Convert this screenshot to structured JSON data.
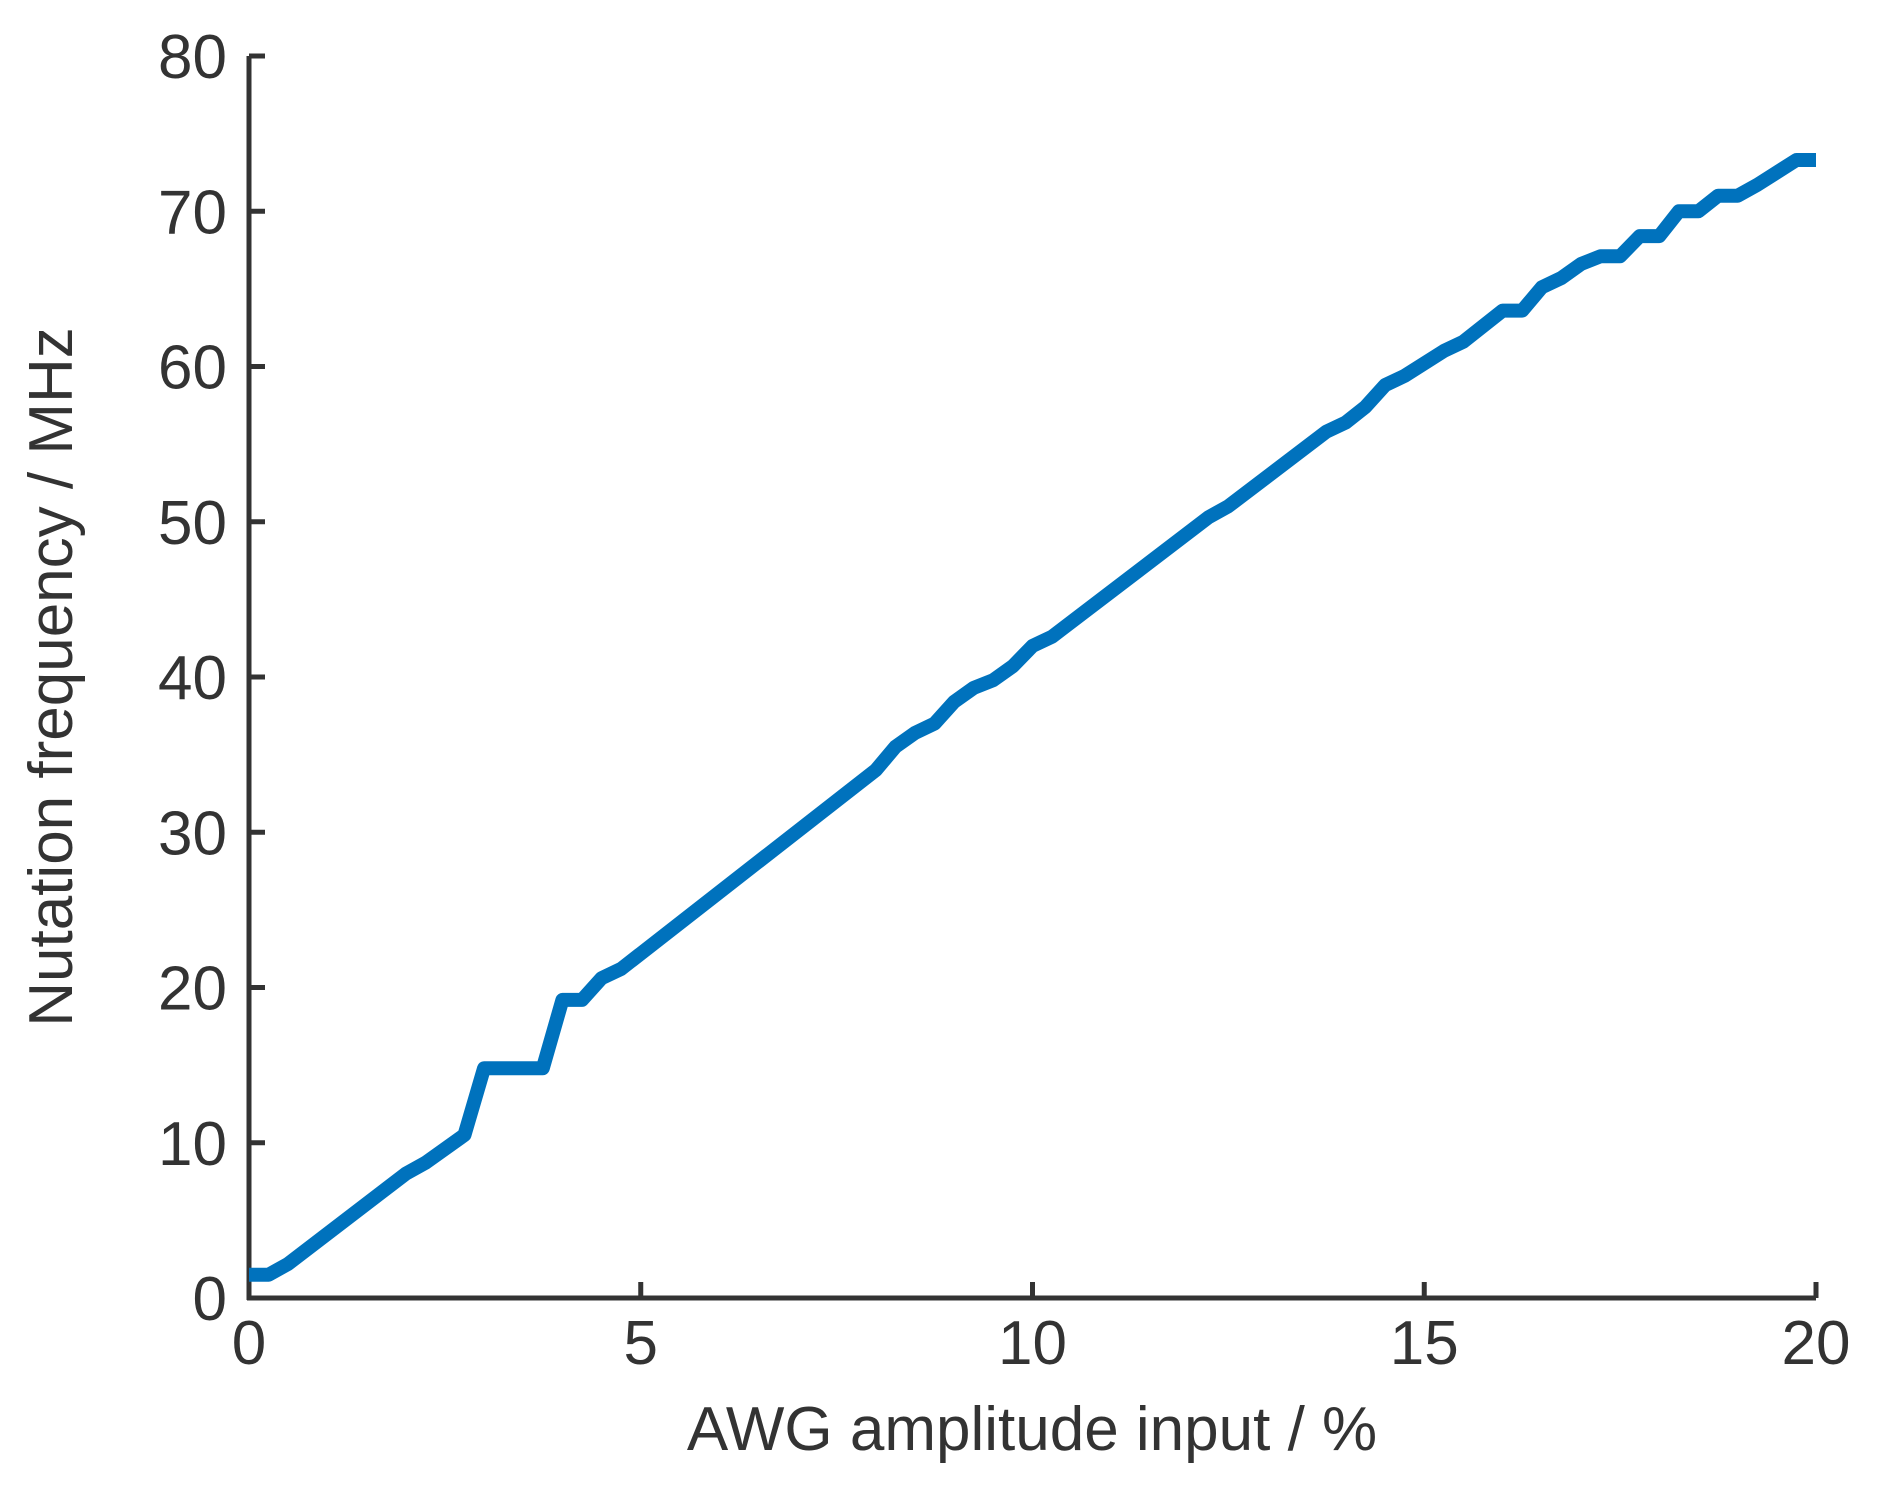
{
  "chart_data": {
    "type": "line",
    "xlabel": "AWG amplitude input / %",
    "ylabel": "Nutation frequency  / MHz",
    "x": [
      0,
      0.25,
      0.5,
      2,
      2.25,
      2.75,
      3,
      3.75,
      4,
      4.25,
      4.5,
      4.75,
      8,
      8.25,
      8.5,
      8.75,
      9,
      9.25,
      9.5,
      9.75,
      10,
      10.25,
      12.25,
      12.5,
      13.75,
      14,
      14.25,
      14.5,
      14.75,
      15.25,
      15.5,
      16,
      16.25,
      16.5,
      16.75,
      17,
      17.25,
      17.5,
      17.75,
      18,
      18.25,
      18.5,
      18.75,
      19,
      19.25,
      19.75,
      20
    ],
    "series": [
      {
        "name": "Nutation frequency",
        "color": "#0072bd",
        "values": [
          1.5,
          1.5,
          2.2,
          8,
          8.7,
          10.5,
          14.8,
          14.8,
          19.2,
          19.2,
          20.6,
          21.2,
          34,
          35.5,
          36.4,
          37,
          38.4,
          39.3,
          39.8,
          40.7,
          42,
          42.6,
          50.3,
          51,
          55.8,
          56.4,
          57.4,
          58.8,
          59.4,
          61,
          61.6,
          63.6,
          63.6,
          65.1,
          65.7,
          66.6,
          67.1,
          67.1,
          68.4,
          68.4,
          70,
          70,
          71,
          71,
          71.7,
          73.3,
          73.3
        ]
      }
    ],
    "xlim": [
      0,
      20
    ],
    "xticks": [
      0,
      5,
      10,
      15,
      20
    ],
    "ylim": [
      0,
      80
    ],
    "yticks": [
      0,
      10,
      20,
      30,
      40,
      50,
      60,
      70,
      80
    ],
    "grid": false
  }
}
